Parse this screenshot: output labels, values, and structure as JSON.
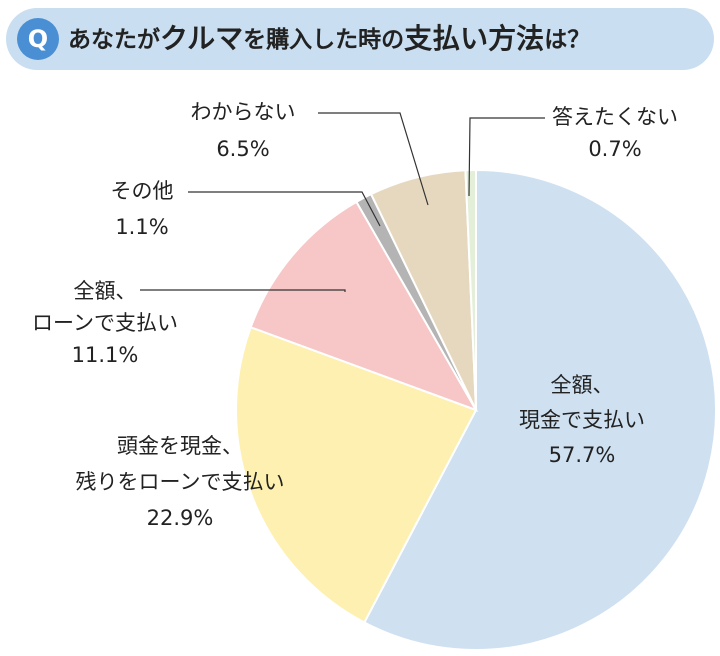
{
  "badge": "Q",
  "chart_data": {
    "type": "pie",
    "title": [
      "あなたが",
      "クルマ",
      "を購入した時の",
      "支払い方法",
      "は？"
    ],
    "categories": [
      "全額、\n現金で支払い",
      "頭金を現金、\n残りをローンで支払い",
      "全額、\nローンで支払い",
      "その他",
      "わからない",
      "答えたくない"
    ],
    "values": [
      57.7,
      22.9,
      11.1,
      1.1,
      6.5,
      0.7
    ],
    "value_labels": [
      "57.7%",
      "22.9%",
      "11.1%",
      "1.1%",
      "6.5%",
      "0.7%"
    ],
    "colors": [
      "#cfe0f1",
      "#fdf0b0",
      "#f7c6c6",
      "#b4b4b4",
      "#e6d8bf",
      "#e3efd8"
    ]
  }
}
